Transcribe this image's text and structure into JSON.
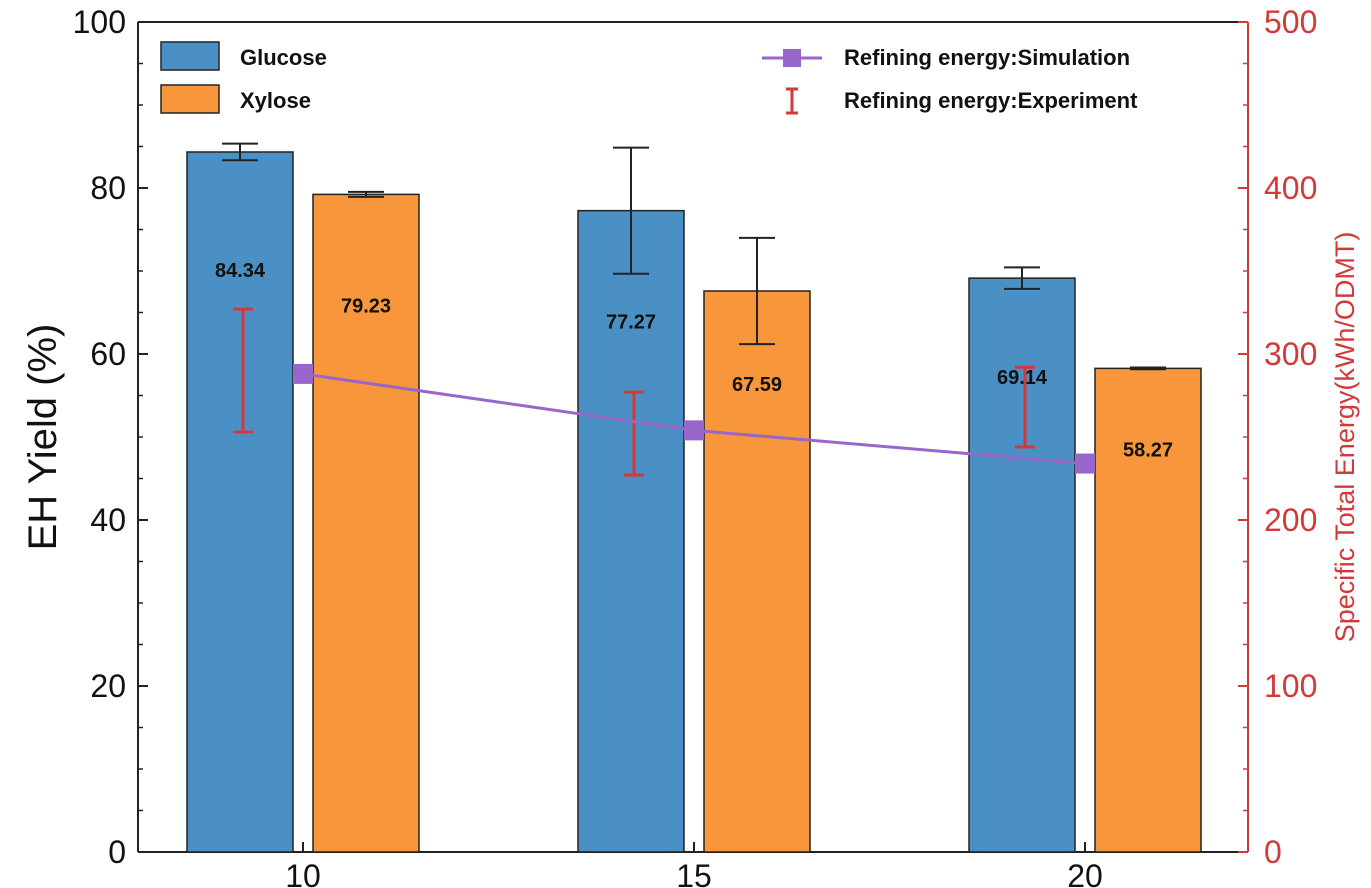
{
  "chart_data": {
    "type": "bar",
    "title": "",
    "xlabel": "",
    "ylabel": "EH Yield (%)",
    "y2label": "Specific Total Energy(kWh/ODMT)",
    "categories": [
      "10",
      "15",
      "20"
    ],
    "ylim": [
      0,
      100
    ],
    "y2lim": [
      0,
      500
    ],
    "yticks": [
      "0",
      "20",
      "40",
      "60",
      "80",
      "100"
    ],
    "y2ticks": [
      "0",
      "100",
      "200",
      "300",
      "400",
      "500"
    ],
    "series": [
      {
        "name": "Glucose",
        "color": "#4a90c4",
        "values": [
          84.34,
          77.27,
          69.14
        ],
        "labels": [
          "84.34",
          "77.27",
          "69.14"
        ],
        "errors": [
          1.0,
          7.6,
          1.3
        ]
      },
      {
        "name": "Xylose",
        "color": "#f7963a",
        "values": [
          79.23,
          67.59,
          58.27
        ],
        "labels": [
          "79.23",
          "67.59",
          "58.27"
        ],
        "errors": [
          0.3,
          6.4,
          0.1
        ]
      }
    ],
    "line_series": {
      "name": "Refining energy:Simulation",
      "axis": "right",
      "color": "#9966cc",
      "values": [
        288,
        254,
        234
      ]
    },
    "errorbar_series": {
      "name": "Refining energy:Experiment",
      "axis": "right",
      "color": "#d23a3a",
      "values": [
        290,
        252,
        268
      ],
      "errors": [
        37,
        25,
        24
      ]
    },
    "legend": "top",
    "grid": false
  }
}
